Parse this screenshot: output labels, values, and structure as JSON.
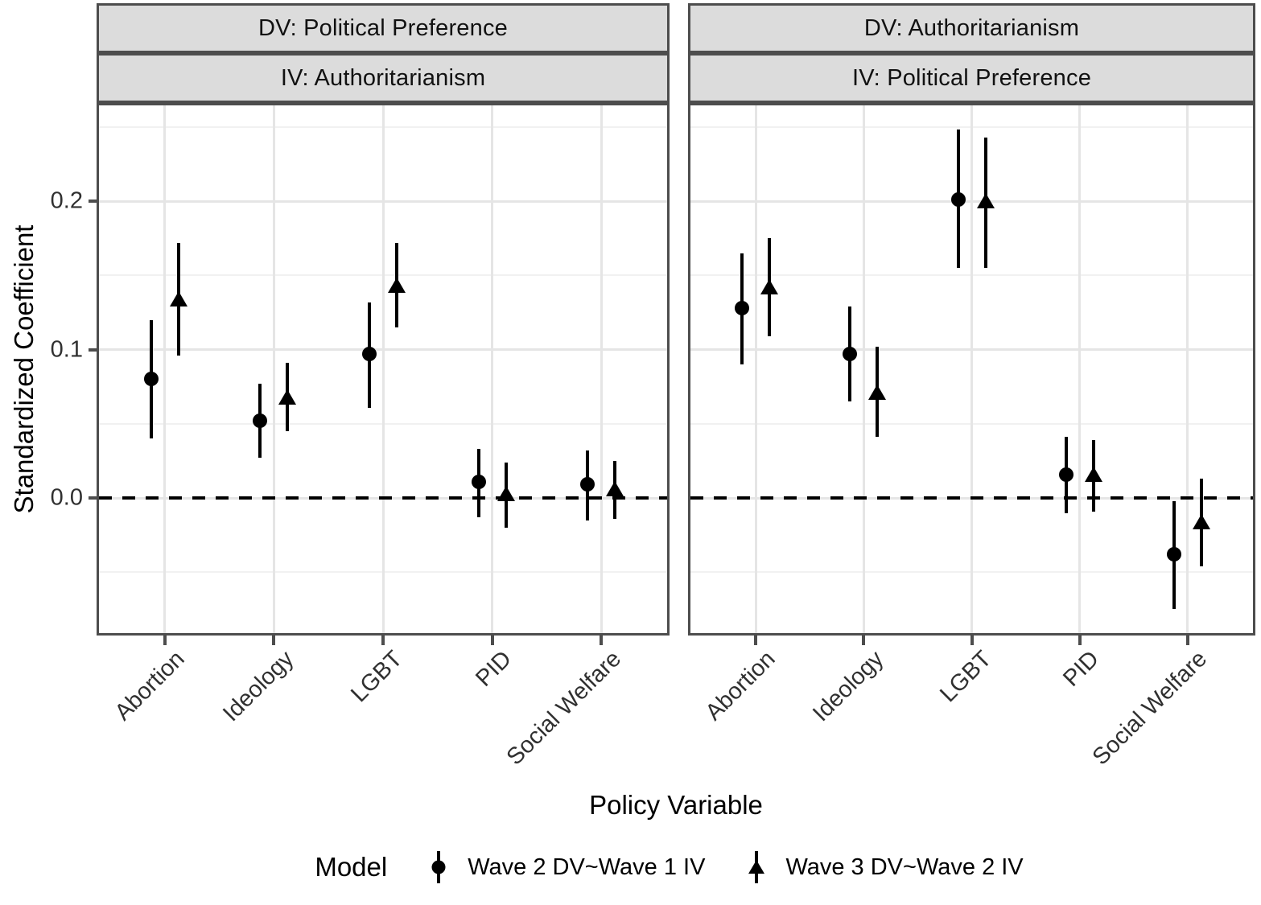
{
  "chart_data": {
    "type": "pointrange",
    "description": "Dodged point-range (coefficient) plot with two facets, horizontal dashed reference line at 0",
    "categories": [
      "Abortion",
      "Ideology",
      "LGBT",
      "PID",
      "Social Welfare"
    ],
    "xlabel": "Policy Variable",
    "ylabel": "Standardized Coefficient",
    "ylim": [
      -0.091,
      0.2645
    ],
    "y_ticks_major": [
      0.0,
      0.1,
      0.2
    ],
    "y_ticks_minor": [
      -0.05,
      0.05,
      0.15,
      0.25
    ],
    "y_tick_labels": [
      "0.2",
      "0.1",
      "0.0"
    ],
    "reference_line_y": 0,
    "grid": "major and minor horizontal gridlines, vertical gridlines at category centers",
    "legend_position": "bottom",
    "panels": [
      {
        "strip_top": "DV: Political Preference",
        "strip_bottom": "IV: Authoritarianism",
        "series": [
          {
            "name": "Wave 2 DV~Wave 1 IV",
            "marker": "circle",
            "points": [
              {
                "category": "Abortion",
                "estimate": 0.08,
                "low": 0.04,
                "high": 0.12
              },
              {
                "category": "Ideology",
                "estimate": 0.052,
                "low": 0.027,
                "high": 0.077
              },
              {
                "category": "LGBT",
                "estimate": 0.097,
                "low": 0.061,
                "high": 0.132
              },
              {
                "category": "PID",
                "estimate": 0.011,
                "low": -0.013,
                "high": 0.033
              },
              {
                "category": "Social Welfare",
                "estimate": 0.009,
                "low": -0.015,
                "high": 0.032
              }
            ]
          },
          {
            "name": "Wave 3 DV~Wave 2 IV",
            "marker": "triangle",
            "points": [
              {
                "category": "Abortion",
                "estimate": 0.134,
                "low": 0.096,
                "high": 0.172
              },
              {
                "category": "Ideology",
                "estimate": 0.068,
                "low": 0.045,
                "high": 0.091
              },
              {
                "category": "LGBT",
                "estimate": 0.143,
                "low": 0.115,
                "high": 0.172
              },
              {
                "category": "PID",
                "estimate": 0.003,
                "low": -0.02,
                "high": 0.024
              },
              {
                "category": "Social Welfare",
                "estimate": 0.006,
                "low": -0.014,
                "high": 0.025
              }
            ]
          }
        ]
      },
      {
        "strip_top": "DV: Authoritarianism",
        "strip_bottom": "IV: Political Preference",
        "series": [
          {
            "name": "Wave 2 DV~Wave 1 IV",
            "marker": "circle",
            "points": [
              {
                "category": "Abortion",
                "estimate": 0.128,
                "low": 0.09,
                "high": 0.165
              },
              {
                "category": "Ideology",
                "estimate": 0.097,
                "low": 0.065,
                "high": 0.129
              },
              {
                "category": "LGBT",
                "estimate": 0.201,
                "low": 0.155,
                "high": 0.248
              },
              {
                "category": "PID",
                "estimate": 0.016,
                "low": -0.01,
                "high": 0.041
              },
              {
                "category": "Social Welfare",
                "estimate": -0.038,
                "low": -0.075,
                "high": -0.002
              }
            ]
          },
          {
            "name": "Wave 3 DV~Wave 2 IV",
            "marker": "triangle",
            "points": [
              {
                "category": "Abortion",
                "estimate": 0.142,
                "low": 0.109,
                "high": 0.175
              },
              {
                "category": "Ideology",
                "estimate": 0.071,
                "low": 0.041,
                "high": 0.102
              },
              {
                "category": "LGBT",
                "estimate": 0.2,
                "low": 0.155,
                "high": 0.243
              },
              {
                "category": "PID",
                "estimate": 0.016,
                "low": -0.009,
                "high": 0.039
              },
              {
                "category": "Social Welfare",
                "estimate": -0.016,
                "low": -0.046,
                "high": 0.013
              }
            ]
          }
        ]
      }
    ],
    "legend": {
      "title": "Model",
      "items": [
        {
          "label": "Wave 2 DV~Wave 1 IV",
          "marker": "circle"
        },
        {
          "label": "Wave 3 DV~Wave 2 IV",
          "marker": "triangle"
        }
      ]
    },
    "colors": {
      "points_and_text": "#000000",
      "strip_fill": "#dcdcdc",
      "panel_border": "#4d4d4d",
      "grid_major": "#e5e5e5",
      "grid_minor": "#f1f1f1",
      "background": "#ffffff"
    }
  }
}
